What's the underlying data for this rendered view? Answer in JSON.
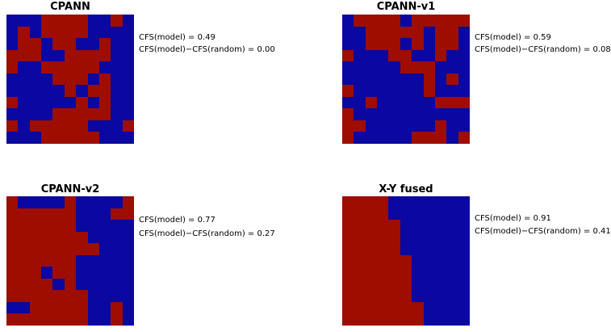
{
  "colors": {
    "class_a": "#9e0d00",
    "class_b": "#0a08a0"
  },
  "chart_data": [
    {
      "type": "heatmap",
      "title": "CPANN",
      "cfs_model": "CFS(model) = 0.49",
      "cfs_diff": "CFS(model)−CFS(random) = 0.00",
      "grid": [
        [
          1,
          1,
          1,
          0,
          0,
          0,
          0,
          1,
          1,
          0,
          1
        ],
        [
          1,
          0,
          1,
          0,
          0,
          0,
          0,
          1,
          1,
          1,
          1
        ],
        [
          1,
          0,
          0,
          1,
          0,
          0,
          1,
          1,
          0,
          1,
          1
        ],
        [
          0,
          0,
          0,
          1,
          1,
          0,
          0,
          0,
          0,
          1,
          1
        ],
        [
          0,
          1,
          1,
          0,
          0,
          0,
          0,
          0,
          1,
          1,
          1
        ],
        [
          1,
          1,
          1,
          1,
          0,
          0,
          0,
          1,
          0,
          1,
          1
        ],
        [
          1,
          1,
          1,
          1,
          1,
          0,
          1,
          0,
          0,
          1,
          1
        ],
        [
          0,
          1,
          1,
          1,
          1,
          1,
          0,
          1,
          0,
          1,
          1
        ],
        [
          1,
          1,
          1,
          1,
          0,
          0,
          0,
          0,
          0,
          1,
          1
        ],
        [
          0,
          1,
          0,
          0,
          0,
          0,
          0,
          1,
          1,
          1,
          0
        ],
        [
          1,
          1,
          1,
          0,
          0,
          0,
          0,
          0,
          1,
          1,
          1
        ]
      ]
    },
    {
      "type": "heatmap",
      "title": "CPANN-v1",
      "cfs_model": "CFS(model) = 0.59",
      "cfs_diff": "CFS(model)−CFS(random) = 0.08",
      "grid": [
        [
          1,
          0,
          0,
          0,
          0,
          1,
          0,
          0,
          0,
          0,
          0
        ],
        [
          1,
          1,
          0,
          0,
          0,
          0,
          0,
          1,
          0,
          0,
          1
        ],
        [
          1,
          1,
          0,
          0,
          0,
          1,
          0,
          1,
          0,
          0,
          1
        ],
        [
          0,
          1,
          1,
          1,
          0,
          0,
          1,
          1,
          0,
          1,
          1
        ],
        [
          1,
          1,
          1,
          1,
          1,
          0,
          0,
          0,
          1,
          1,
          1
        ],
        [
          1,
          1,
          1,
          1,
          1,
          1,
          1,
          0,
          1,
          0,
          1
        ],
        [
          0,
          1,
          1,
          1,
          1,
          1,
          1,
          0,
          1,
          1,
          1
        ],
        [
          1,
          1,
          0,
          1,
          1,
          1,
          1,
          1,
          0,
          0,
          0
        ],
        [
          0,
          1,
          1,
          1,
          1,
          1,
          1,
          1,
          1,
          1,
          1
        ],
        [
          0,
          0,
          1,
          1,
          1,
          1,
          1,
          1,
          0,
          1,
          1
        ],
        [
          0,
          1,
          1,
          1,
          1,
          1,
          0,
          0,
          0,
          1,
          0
        ]
      ]
    },
    {
      "type": "heatmap",
      "title": "CPANN-v2",
      "cfs_model": "CFS(model) = 0.77",
      "cfs_diff": "CFS(model)−CFS(random) = 0.27",
      "grid": [
        [
          0,
          1,
          1,
          1,
          1,
          0,
          1,
          1,
          1,
          1,
          0
        ],
        [
          0,
          0,
          0,
          0,
          0,
          0,
          1,
          1,
          1,
          0,
          0
        ],
        [
          0,
          0,
          0,
          0,
          0,
          0,
          1,
          1,
          1,
          1,
          1
        ],
        [
          0,
          0,
          0,
          0,
          0,
          0,
          0,
          1,
          1,
          1,
          1
        ],
        [
          0,
          0,
          0,
          0,
          0,
          0,
          0,
          0,
          1,
          1,
          1
        ],
        [
          0,
          0,
          0,
          0,
          0,
          0,
          1,
          1,
          1,
          1,
          1
        ],
        [
          0,
          0,
          0,
          1,
          0,
          0,
          1,
          1,
          1,
          1,
          1
        ],
        [
          0,
          0,
          0,
          0,
          1,
          0,
          1,
          1,
          1,
          1,
          1
        ],
        [
          0,
          0,
          0,
          0,
          0,
          0,
          0,
          1,
          1,
          1,
          1
        ],
        [
          1,
          1,
          0,
          0,
          0,
          0,
          0,
          1,
          1,
          0,
          1
        ],
        [
          0,
          0,
          0,
          0,
          0,
          0,
          0,
          1,
          1,
          0,
          1
        ]
      ]
    },
    {
      "type": "heatmap",
      "title": "X-Y fused",
      "cfs_model": "CFS(model) = 0.91",
      "cfs_diff": "CFS(model)−CFS(random) = 0.41",
      "grid": [
        [
          0,
          0,
          0,
          0,
          1,
          1,
          1,
          1,
          1,
          1,
          1
        ],
        [
          0,
          0,
          0,
          0,
          1,
          1,
          1,
          1,
          1,
          1,
          1
        ],
        [
          0,
          0,
          0,
          0,
          0,
          1,
          1,
          1,
          1,
          1,
          1
        ],
        [
          0,
          0,
          0,
          0,
          0,
          1,
          1,
          1,
          1,
          1,
          1
        ],
        [
          0,
          0,
          0,
          0,
          0,
          1,
          1,
          1,
          1,
          1,
          1
        ],
        [
          0,
          0,
          0,
          0,
          0,
          0,
          1,
          1,
          1,
          1,
          1
        ],
        [
          0,
          0,
          0,
          0,
          0,
          0,
          1,
          1,
          1,
          1,
          1
        ],
        [
          0,
          0,
          0,
          0,
          0,
          0,
          1,
          1,
          1,
          1,
          1
        ],
        [
          0,
          0,
          0,
          0,
          0,
          0,
          1,
          1,
          1,
          1,
          1
        ],
        [
          0,
          0,
          0,
          0,
          0,
          0,
          0,
          1,
          1,
          1,
          1
        ],
        [
          0,
          0,
          0,
          0,
          0,
          0,
          0,
          1,
          1,
          1,
          1
        ]
      ]
    }
  ]
}
